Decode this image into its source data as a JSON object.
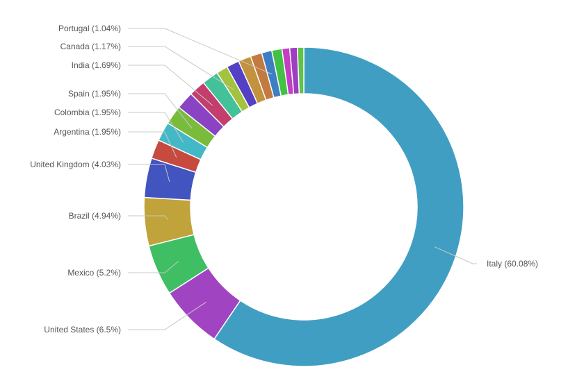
{
  "chart_data": {
    "type": "pie",
    "variant": "donut",
    "slices": [
      {
        "label": "Italy (60.08%)",
        "name": "Italy",
        "value": 60.08,
        "color": "#419ec3"
      },
      {
        "label": "United States (6.5%)",
        "name": "United States",
        "value": 6.5,
        "color": "#a044c2"
      },
      {
        "label": "Mexico (5.2%)",
        "name": "Mexico",
        "value": 5.2,
        "color": "#3fbe64"
      },
      {
        "label": "Brazil (4.94%)",
        "name": "Brazil",
        "value": 4.94,
        "color": "#c1a33b"
      },
      {
        "label": "United Kingdom (4.03%)",
        "name": "United Kingdom",
        "value": 4.03,
        "color": "#4154c0"
      },
      {
        "label": "Argentina (1.95%)",
        "name": "Argentina",
        "value": 1.95,
        "color": "#c64a3e"
      },
      {
        "label": "Colombia (1.95%)",
        "name": "Colombia",
        "value": 1.95,
        "color": "#43b8c6"
      },
      {
        "label": "Spain (1.95%)",
        "name": "Spain",
        "value": 1.95,
        "color": "#79bc3b"
      },
      {
        "label": "",
        "name": "",
        "value": 1.82,
        "color": "#8a43c3"
      },
      {
        "label": "India (1.69%)",
        "name": "India",
        "value": 1.69,
        "color": "#c33e6c"
      },
      {
        "label": "",
        "name": "",
        "value": 1.69,
        "color": "#43c199"
      },
      {
        "label": "Canada (1.17%)",
        "name": "Canada",
        "value": 1.17,
        "color": "#a3c33e"
      },
      {
        "label": "",
        "name": "",
        "value": 1.3,
        "color": "#5340c3"
      },
      {
        "label": "",
        "name": "",
        "value": 1.3,
        "color": "#c3923e"
      },
      {
        "label": "",
        "name": "",
        "value": 1.17,
        "color": "#c37a3e"
      },
      {
        "label": "Portugal (1.04%)",
        "name": "Portugal",
        "value": 1.04,
        "color": "#3e7ec3"
      },
      {
        "label": "",
        "name": "",
        "value": 1.04,
        "color": "#43c145"
      },
      {
        "label": "",
        "name": "",
        "value": 0.78,
        "color": "#c33ec3"
      },
      {
        "label": "",
        "name": "",
        "value": 0.78,
        "color": "#9e3ec3"
      },
      {
        "label": "",
        "name": "",
        "value": 0.65,
        "color": "#5fc34a"
      }
    ],
    "legend": "none",
    "labels": "outside-with-leader-lines"
  }
}
